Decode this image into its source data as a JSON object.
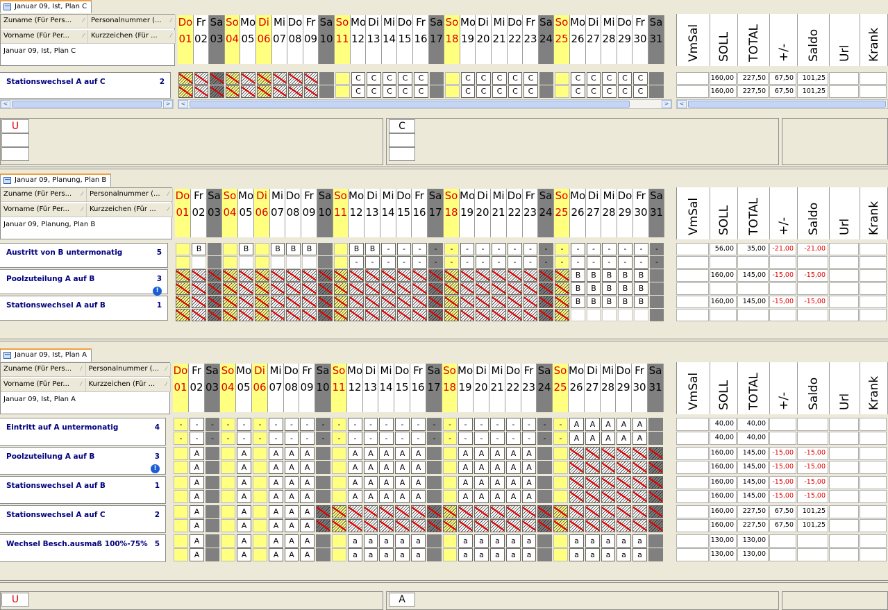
{
  "days": {
    "names": [
      "Do",
      "Fr",
      "Sa",
      "So",
      "Mo",
      "Di",
      "Mi",
      "Do",
      "Fr",
      "Sa",
      "So",
      "Mo",
      "Di",
      "Mi",
      "Do",
      "Fr",
      "Sa",
      "So",
      "Mo",
      "Di",
      "Mi",
      "Do",
      "Fr",
      "Sa",
      "So",
      "Mo",
      "Di",
      "Mi",
      "Do",
      "Fr",
      "Sa"
    ],
    "numbers": [
      "01",
      "02",
      "03",
      "04",
      "05",
      "06",
      "07",
      "08",
      "09",
      "10",
      "11",
      "12",
      "13",
      "14",
      "15",
      "16",
      "17",
      "18",
      "19",
      "20",
      "21",
      "22",
      "23",
      "24",
      "25",
      "26",
      "27",
      "28",
      "29",
      "30",
      "31"
    ],
    "kinds": [
      "hol",
      "wk",
      "sa",
      "so",
      "wk",
      "hol",
      "wk",
      "wk",
      "wk",
      "sa",
      "so",
      "wk",
      "wk",
      "wk",
      "wk",
      "wk",
      "sa",
      "so",
      "wk",
      "wk",
      "wk",
      "wk",
      "wk",
      "sa",
      "so",
      "wk",
      "wk",
      "wk",
      "wk",
      "wk",
      "sa"
    ]
  },
  "summary_headers": [
    "VmSal",
    "SOLL",
    "TOTAL",
    "+/-",
    "Saldo",
    "Url",
    "Krank"
  ],
  "colors": {
    "saturday": "#808080",
    "sunday_holiday": "#ffff80",
    "holiday_text": "#e00000",
    "row_label": "#000080"
  },
  "panels": [
    {
      "tab": "Januar 09, Ist, Plan C",
      "header": {
        "c1": "Zuname (Für Pers...",
        "c2": "Personalnummer (...",
        "c3": "Vorname (Für Per...",
        "c4": "Kurzzeichen (Für ...",
        "title": "Januar 09, Ist, Plan C"
      },
      "rows": [
        {
          "name": "Stationswechsel A auf C",
          "count": "2",
          "warn": false,
          "lines": [
            {
              "cells": "X X X X X X X X X _ _ C C C C C _ _ C C C C C _ _ C C C C C _",
              "sums": [
                "",
                "160,00",
                "227,50",
                "67,50",
                "101,25",
                "",
                ""
              ]
            },
            {
              "cells": "X X X X X X X X X _ _ C C C C C _ _ C C C C C _ _ C C C C C _",
              "sums": [
                "",
                "160,00",
                "227,50",
                "67,50",
                "101,25",
                "",
                ""
              ]
            }
          ]
        }
      ],
      "footer_left": "U",
      "footer_mid": "C"
    },
    {
      "tab": "Januar 09, Planung, Plan B",
      "header": {
        "c1": "Zuname (Für Pers...",
        "c2": "Personalnummer (...",
        "c3": "Vorname (Für Per...",
        "c4": "Kurzzeichen (Für ...",
        "title": "Januar 09, Planung, Plan B"
      },
      "rows": [
        {
          "name": "Austritt von B untermonatig",
          "count": "5",
          "warn": false,
          "lines": [
            {
              "cells": "_ B _ _ B _ B B B _ _ B B - - - - - - - - - - - - - - - - - -",
              "sums": [
                "",
                "56,00",
                "35,00",
                "-21,00",
                "-21,00",
                "",
                ""
              ]
            },
            {
              "cells": "_ _ _ _ _ _ _ _ _ _ _ - - - - - - - - - - - - - - - - - - - -",
              "sums": [
                "",
                "",
                "",
                "",
                "",
                "",
                ""
              ]
            }
          ]
        },
        {
          "name": "Poolzuteilung A auf B",
          "count": "3",
          "warn": true,
          "lines": [
            {
              "cells": "X X X X X X X X X X X X X X X X X X X X X X X X X B B B B B _",
              "sums": [
                "",
                "160,00",
                "145,00",
                "-15,00",
                "-15,00",
                "",
                ""
              ]
            },
            {
              "cells": "X X X X X X X X X X X X X X X X X X X X X X X X X B B B B B _",
              "sums": [
                "",
                "",
                "",
                "",
                "",
                "",
                ""
              ]
            }
          ]
        },
        {
          "name": "Stationswechsel A auf B",
          "count": "1",
          "warn": false,
          "lines": [
            {
              "cells": "X X X X X X X X X X X X X X X X X X X X X X X X X B B B B B _",
              "sums": [
                "",
                "160,00",
                "145,00",
                "-15,00",
                "-15,00",
                "",
                ""
              ]
            },
            {
              "cells": "X X X X X X X X X X X X X X X X X X X X X X X X X _ _ _ _ _ _",
              "sums": [
                "",
                "",
                "",
                "",
                "",
                "",
                ""
              ]
            }
          ]
        }
      ]
    },
    {
      "tab": "Januar 09, Ist, Plan A",
      "header": {
        "c1": "Zuname (Für Pers...",
        "c2": "Personalnummer (...",
        "c3": "Vorname (Für Per...",
        "c4": "Kurzzeichen (Für ...",
        "title": "Januar 09, Ist, Plan A"
      },
      "rows": [
        {
          "name": "Eintritt auf A untermonatig",
          "count": "4",
          "warn": false,
          "lines": [
            {
              "cells": "- - - - - - - - - - - - - - - - - - - - - - - - - A A A A A _",
              "sums": [
                "",
                "40,00",
                "40,00",
                "",
                "",
                "",
                ""
              ]
            },
            {
              "cells": "- - - - - - - - - - - - - - - - - - - - - - - - - A A A A A _",
              "sums": [
                "",
                "40,00",
                "40,00",
                "",
                "",
                "",
                ""
              ]
            }
          ]
        },
        {
          "name": "Poolzuteilung A auf B",
          "count": "3",
          "warn": true,
          "lines": [
            {
              "cells": "_ A _ _ A _ A A A _ _ A A A A A _ _ A A A A A _ _ X X X X X X",
              "sums": [
                "",
                "160,00",
                "145,00",
                "-15,00",
                "-15,00",
                "",
                ""
              ]
            },
            {
              "cells": "_ A _ _ A _ A A A _ _ A A A A A _ _ A A A A A _ _ X X X X X X",
              "sums": [
                "",
                "160,00",
                "145,00",
                "-15,00",
                "-15,00",
                "",
                ""
              ]
            }
          ]
        },
        {
          "name": "Stationswechsel A auf B",
          "count": "1",
          "warn": false,
          "lines": [
            {
              "cells": "_ A _ _ A _ A A A _ _ A A A A A _ _ A A A A A _ _ X X X X X X",
              "sums": [
                "",
                "160,00",
                "145,00",
                "-15,00",
                "-15,00",
                "",
                ""
              ]
            },
            {
              "cells": "_ A _ _ A _ A A A _ _ A A A A A _ _ A A A A A _ _ X X X X X X",
              "sums": [
                "",
                "160,00",
                "145,00",
                "-15,00",
                "-15,00",
                "",
                ""
              ]
            }
          ]
        },
        {
          "name": "Stationswechsel A auf C",
          "count": "2",
          "warn": false,
          "lines": [
            {
              "cells": "_ A _ _ A _ A A A X X X X X X X X X X X X X X X X X X X X X X",
              "sums": [
                "",
                "160,00",
                "227,50",
                "67,50",
                "101,25",
                "",
                ""
              ]
            },
            {
              "cells": "_ A _ _ A _ A A A X X X X X X X X X X X X X X X X X X X X X X",
              "sums": [
                "",
                "160,00",
                "227,50",
                "67,50",
                "101,25",
                "",
                ""
              ]
            }
          ]
        },
        {
          "name": "Wechsel Besch.ausmaß 100%-75%",
          "count": "5",
          "warn": false,
          "lines": [
            {
              "cells": "_ A _ _ A _ A A A _ _ a a a a a _ _ a a a a a _ _ a a a a a _",
              "sums": [
                "",
                "130,00",
                "130,00",
                "",
                "",
                "",
                ""
              ]
            },
            {
              "cells": "_ A _ _ A _ A A A _ _ a a a a a _ _ a a a a a _ _ a a a a a _",
              "sums": [
                "",
                "130,00",
                "130,00",
                "",
                "",
                "",
                ""
              ]
            }
          ]
        }
      ],
      "footer_left": "U",
      "footer_mid": "A"
    }
  ]
}
